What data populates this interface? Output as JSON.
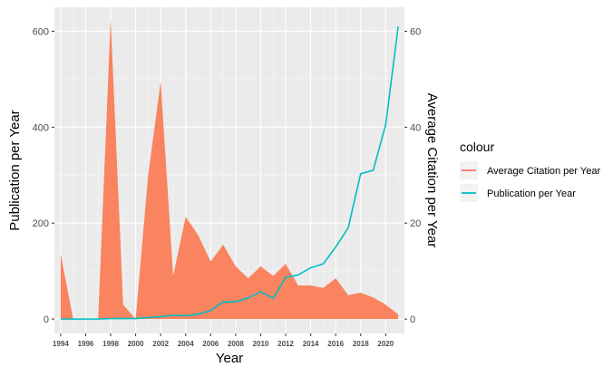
{
  "chart_data": {
    "type": "area",
    "title": "",
    "xlabel": "Year",
    "ylabel_left": "Publication per Year",
    "ylabel_right": "Average Citation per Year",
    "xlim": [
      1993.5,
      2021.5
    ],
    "ylim_left": [
      -30,
      650
    ],
    "ylim_right": [
      -3,
      65
    ],
    "x_ticks": [
      "1994",
      "1996",
      "1998",
      "2000",
      "2002",
      "2004",
      "2006",
      "2008",
      "2010",
      "2012",
      "2014",
      "2016",
      "2018",
      "2020"
    ],
    "y_ticks_left": [
      "0",
      "200",
      "400",
      "600"
    ],
    "y_ticks_right": [
      "0",
      "20",
      "40",
      "60"
    ],
    "grid": true,
    "legend": {
      "position": "right",
      "title": "colour",
      "entries": [
        {
          "label": "Average Citation per Year",
          "color": "#F8766D"
        },
        {
          "label": "Publication per Year",
          "color": "#00BFC4"
        }
      ]
    },
    "series": [
      {
        "name": "Average Citation per Year",
        "type": "area",
        "axis": "left",
        "color": "#F8766D",
        "fill": "#F9845F",
        "x": [
          1994,
          1995,
          1996,
          1997,
          1998,
          1999,
          2000,
          2001,
          2002,
          2003,
          2004,
          2005,
          2006,
          2007,
          2008,
          2009,
          2010,
          2011,
          2012,
          2013,
          2014,
          2015,
          2016,
          2017,
          2018,
          2019,
          2020,
          2021
        ],
        "values": [
          135,
          0,
          0,
          0,
          625,
          30,
          0,
          300,
          495,
          90,
          213,
          175,
          120,
          155,
          110,
          85,
          110,
          90,
          115,
          70,
          70,
          65,
          85,
          50,
          55,
          45,
          30,
          10
        ]
      },
      {
        "name": "Publication per Year",
        "type": "line",
        "axis": "right",
        "color": "#00BFC4",
        "x": [
          1994,
          1995,
          1996,
          1997,
          1998,
          1999,
          2000,
          2001,
          2002,
          2003,
          2004,
          2005,
          2006,
          2007,
          2008,
          2009,
          2010,
          2011,
          2012,
          2013,
          2014,
          2015,
          2016,
          2017,
          2018,
          2019,
          2020,
          2021
        ],
        "values": [
          0,
          0,
          0,
          0,
          0.1,
          0.1,
          0.1,
          0.3,
          0.5,
          0.8,
          0.7,
          1,
          1.8,
          3.6,
          3.6,
          4.4,
          5.7,
          4.3,
          8.7,
          9.2,
          10.7,
          11.5,
          15,
          19,
          30.3,
          31,
          40.5,
          61
        ]
      }
    ]
  }
}
